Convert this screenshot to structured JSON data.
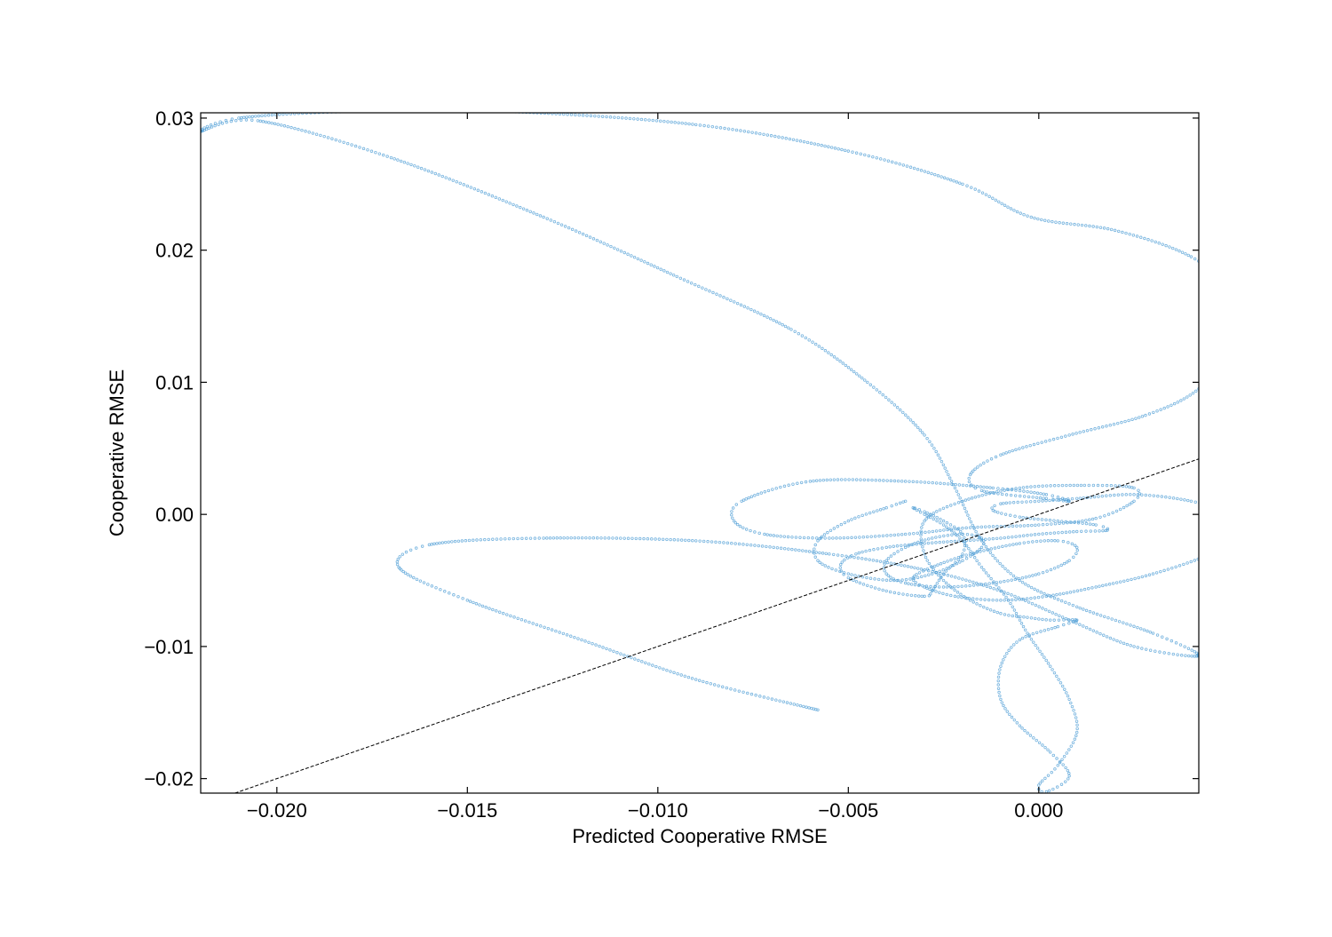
{
  "chart_data": {
    "type": "scatter",
    "title": "",
    "xlabel": "Predicted Cooperative RMSE",
    "ylabel": "Cooperative RMSE",
    "xlim": [
      -0.022,
      0.0042
    ],
    "ylim": [
      -0.0211,
      0.0304
    ],
    "x_ticks": [
      -0.02,
      -0.015,
      -0.01,
      -0.005,
      0.0
    ],
    "x_tick_labels": [
      "−0.020",
      "−0.015",
      "−0.010",
      "−0.005",
      "0.000"
    ],
    "y_ticks": [
      -0.02,
      -0.01,
      0.0,
      0.01,
      0.02,
      0.03
    ],
    "y_tick_labels": [
      "−0.02",
      "−0.01",
      "0.00",
      "0.01",
      "0.02",
      "0.03"
    ],
    "grid": false,
    "legend": "none",
    "reference_line": "y = x",
    "series": [
      {
        "color": "#4a9bd4",
        "trajectory_nodes": [
          [
            -0.0058,
            -0.0148
          ],
          [
            -0.009,
            -0.0125
          ],
          [
            -0.012,
            -0.0095
          ],
          [
            -0.015,
            -0.0065
          ],
          [
            -0.0168,
            -0.004
          ],
          [
            -0.016,
            -0.0023
          ],
          [
            -0.013,
            -0.0018
          ],
          [
            -0.009,
            -0.002
          ],
          [
            -0.0055,
            -0.003
          ],
          [
            -0.003,
            -0.0042
          ],
          [
            -0.001,
            -0.0058
          ],
          [
            0.0008,
            -0.008
          ],
          [
            0.0025,
            -0.01
          ],
          [
            0.0042,
            -0.0107
          ],
          [
            0.003,
            -0.009
          ],
          [
            0.001,
            -0.007
          ],
          [
            -0.0005,
            -0.005
          ],
          [
            -0.0015,
            -0.002
          ],
          [
            -0.0022,
            0.002
          ],
          [
            -0.003,
            0.006
          ],
          [
            -0.0045,
            0.01
          ],
          [
            -0.0065,
            0.014
          ],
          [
            -0.0095,
            0.018
          ],
          [
            -0.013,
            0.0225
          ],
          [
            -0.017,
            0.027
          ],
          [
            -0.0205,
            0.0298
          ],
          [
            -0.022,
            0.029
          ],
          [
            -0.021,
            0.03
          ],
          [
            -0.018,
            0.0305
          ],
          [
            -0.014,
            0.0305
          ],
          [
            -0.009,
            0.0295
          ],
          [
            -0.005,
            0.0275
          ],
          [
            -0.002,
            0.025
          ],
          [
            -0.0002,
            0.0225
          ],
          [
            0.002,
            0.0215
          ],
          [
            0.004,
            0.0195
          ],
          [
            0.0052,
            0.0165
          ],
          [
            0.0052,
            0.013
          ],
          [
            0.0042,
            0.0095
          ],
          [
            0.0028,
            0.0075
          ],
          [
            0.0008,
            0.006
          ],
          [
            -0.001,
            0.0045
          ],
          [
            -0.0018,
            0.003
          ],
          [
            -0.0015,
            0.0018
          ],
          [
            0.0002,
            0.0012
          ],
          [
            0.0008,
            0.001
          ],
          [
            0.0002,
            0.0015
          ],
          [
            -0.0012,
            0.002
          ],
          [
            -0.0035,
            0.0025
          ],
          [
            -0.006,
            0.0025
          ],
          [
            -0.0078,
            0.001
          ],
          [
            -0.008,
            -0.0005
          ],
          [
            -0.0072,
            -0.0015
          ],
          [
            -0.0055,
            -0.0018
          ],
          [
            -0.0035,
            -0.0015
          ],
          [
            -0.0018,
            -0.001
          ],
          [
            0.0,
            -0.0008
          ],
          [
            0.0015,
            -0.0003
          ],
          [
            0.0025,
            0.001
          ],
          [
            0.0025,
            0.002
          ],
          [
            0.0012,
            0.0022
          ],
          [
            -0.0005,
            0.002
          ],
          [
            -0.002,
            0.001
          ],
          [
            -0.003,
            -0.0005
          ],
          [
            -0.003,
            -0.003
          ],
          [
            -0.0025,
            -0.005
          ],
          [
            -0.0018,
            -0.0065
          ],
          [
            -0.001,
            -0.0075
          ],
          [
            -0.0003,
            -0.0078
          ],
          [
            0.0003,
            -0.008
          ],
          [
            0.001,
            -0.008
          ],
          [
            0.0005,
            -0.0085
          ],
          [
            -0.0005,
            -0.0095
          ],
          [
            -0.001,
            -0.0115
          ],
          [
            -0.001,
            -0.014
          ],
          [
            -0.0005,
            -0.016
          ],
          [
            0.0003,
            -0.018
          ],
          [
            0.0008,
            -0.0198
          ],
          [
            0.0002,
            -0.021
          ],
          [
            0.0,
            -0.0205
          ],
          [
            0.0005,
            -0.019
          ],
          [
            0.001,
            -0.0165
          ],
          [
            0.0008,
            -0.014
          ],
          [
            0.0003,
            -0.0115
          ],
          [
            -0.0003,
            -0.009
          ],
          [
            -0.0008,
            -0.0065
          ],
          [
            -0.0015,
            -0.004
          ],
          [
            -0.002,
            -0.002
          ],
          [
            -0.0025,
            -0.0008
          ],
          [
            -0.003,
            0.0
          ],
          [
            -0.0033,
            0.0005
          ],
          [
            -0.003,
            0.0002
          ],
          [
            -0.0025,
            -0.0005
          ],
          [
            -0.002,
            -0.0015
          ],
          [
            -0.002,
            -0.003
          ],
          [
            -0.0025,
            -0.0045
          ],
          [
            -0.0028,
            -0.0058
          ],
          [
            -0.003,
            -0.0062
          ],
          [
            -0.004,
            -0.0058
          ],
          [
            -0.005,
            -0.0048
          ],
          [
            -0.0052,
            -0.0038
          ],
          [
            -0.0048,
            -0.003
          ],
          [
            -0.004,
            -0.0025
          ],
          [
            -0.003,
            -0.0022
          ],
          [
            -0.002,
            -0.002
          ],
          [
            -0.001,
            -0.0018
          ],
          [
            0.0,
            -0.0015
          ],
          [
            0.001,
            -0.0013
          ],
          [
            0.0018,
            -0.0012
          ],
          [
            0.0015,
            -0.0008
          ],
          [
            0.0005,
            -0.0005
          ],
          [
            -0.0005,
            -0.0002
          ],
          [
            -0.0012,
            0.0003
          ],
          [
            -0.001,
            0.0008
          ],
          [
            0.0,
            0.001
          ],
          [
            0.001,
            0.0012
          ],
          [
            0.0025,
            0.0015
          ],
          [
            0.004,
            0.001
          ],
          [
            0.005,
            0.0
          ],
          [
            0.0052,
            -0.0015
          ],
          [
            0.0045,
            -0.003
          ],
          [
            0.003,
            -0.0045
          ],
          [
            0.0015,
            -0.0055
          ],
          [
            0.0002,
            -0.0062
          ],
          [
            -0.001,
            -0.0065
          ],
          [
            -0.0022,
            -0.0062
          ],
          [
            -0.003,
            -0.0055
          ],
          [
            -0.0033,
            -0.0048
          ],
          [
            -0.0028,
            -0.004
          ],
          [
            -0.0018,
            -0.003
          ],
          [
            -0.0005,
            -0.0022
          ],
          [
            0.0005,
            -0.002
          ],
          [
            0.001,
            -0.0025
          ],
          [
            0.0008,
            -0.0035
          ],
          [
            0.0,
            -0.0045
          ],
          [
            -0.0012,
            -0.0052
          ],
          [
            -0.0025,
            -0.0055
          ],
          [
            -0.0035,
            -0.0052
          ],
          [
            -0.004,
            -0.0045
          ],
          [
            -0.004,
            -0.0035
          ],
          [
            -0.0035,
            -0.0025
          ],
          [
            -0.0028,
            -0.0018
          ],
          [
            -0.002,
            -0.0015
          ],
          [
            -0.0015,
            -0.0018
          ],
          [
            -0.0015,
            -0.0025
          ],
          [
            -0.002,
            -0.0035
          ],
          [
            -0.0028,
            -0.0045
          ],
          [
            -0.0038,
            -0.005
          ],
          [
            -0.005,
            -0.0045
          ],
          [
            -0.0058,
            -0.0035
          ],
          [
            -0.0058,
            -0.002
          ],
          [
            -0.005,
            -0.0005
          ],
          [
            -0.004,
            0.0005
          ],
          [
            -0.0035,
            0.001
          ]
        ]
      }
    ]
  }
}
